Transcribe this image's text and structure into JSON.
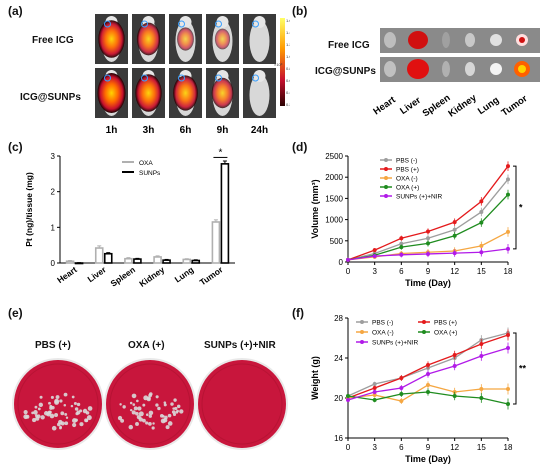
{
  "panel_labels": [
    "(a)",
    "(b)",
    "(c)",
    "(d)",
    "(e)",
    "(f)"
  ],
  "panel_a": {
    "row_labels": [
      "Free ICG",
      "ICG@SUNPs"
    ],
    "time_labels": [
      "1h",
      "3h",
      "6h",
      "9h",
      "24h"
    ],
    "colorbar_ticks": [
      "1.6",
      "1.4",
      "1.2",
      "1.0",
      "0.8",
      "0.6",
      "0.4",
      "0.2"
    ],
    "colorbar_exponent": "×10⁹",
    "colors": {
      "dark": "#1a0000",
      "mid": "#c8102e",
      "hot": "#ffd400"
    }
  },
  "panel_b": {
    "row_labels": [
      "Free ICG",
      "ICG@SUNPs"
    ],
    "organ_labels": [
      "Heart",
      "Liver",
      "Spleen",
      "Kidney",
      "Lung",
      "Tumor"
    ]
  },
  "panel_e": {
    "dish_labels": [
      "PBS (+)",
      "OXA (+)",
      "SUNPs (+)+NIR"
    ],
    "colors": {
      "agar": "#c8163c",
      "colony": "#d9d9d9"
    }
  },
  "chart_data": [
    {
      "id": "c",
      "type": "bar",
      "ylabel": "Pt (ng)/tissue (mg)",
      "ylim": [
        0,
        3
      ],
      "yticks": [
        "0",
        "1",
        "2",
        "3"
      ],
      "categories": [
        "Heart",
        "Liver",
        "Spleen",
        "Kidney",
        "Lung",
        "Tumor"
      ],
      "series": [
        {
          "name": "OXA",
          "color": "#b0b0b0",
          "values": [
            0.05,
            0.42,
            0.12,
            0.17,
            0.1,
            1.15
          ],
          "err": [
            0.02,
            0.06,
            0.03,
            0.03,
            0.02,
            0.06
          ]
        },
        {
          "name": "SUNPs",
          "color": "#000000",
          "values": [
            0.0,
            0.26,
            0.11,
            0.08,
            0.07,
            2.78
          ],
          "err": [
            0.01,
            0.03,
            0.02,
            0.02,
            0.02,
            0.08
          ]
        }
      ],
      "annotation": "*",
      "legend_position": "top-left"
    },
    {
      "id": "d",
      "type": "line",
      "xlabel": "Time (Day)",
      "ylabel": "Volume (mm³)",
      "xlim": [
        0,
        18
      ],
      "ylim": [
        0,
        2500
      ],
      "x": [
        0,
        3,
        6,
        9,
        12,
        15,
        18
      ],
      "xticks": [
        "0",
        "3",
        "6",
        "9",
        "12",
        "15",
        "18"
      ],
      "yticks": [
        "0",
        "500",
        "1000",
        "1500",
        "2000",
        "2500"
      ],
      "series": [
        {
          "name": "PBS (-)",
          "color": "#9e9e9e",
          "values": [
            50,
            200,
            430,
            560,
            760,
            1180,
            1950
          ]
        },
        {
          "name": "PBS (+)",
          "color": "#e41a1c",
          "values": [
            50,
            280,
            560,
            720,
            940,
            1430,
            2260
          ]
        },
        {
          "name": "OXA (-)",
          "color": "#f5a742",
          "values": [
            50,
            120,
            200,
            230,
            260,
            380,
            710
          ]
        },
        {
          "name": "OXA (+)",
          "color": "#1f8c1f",
          "values": [
            50,
            160,
            350,
            440,
            620,
            930,
            1590
          ]
        },
        {
          "name": "SUNPs (+)+NIR",
          "color": "#b11ae8",
          "values": [
            50,
            140,
            170,
            190,
            210,
            230,
            310
          ]
        }
      ],
      "annotation": "*",
      "legend_position": "top-left"
    },
    {
      "id": "f",
      "type": "line",
      "xlabel": "Time (Day)",
      "ylabel": "Weight (g)",
      "xlim": [
        0,
        18
      ],
      "ylim": [
        16,
        28
      ],
      "x": [
        0,
        3,
        6,
        9,
        12,
        15,
        18
      ],
      "xticks": [
        "0",
        "3",
        "6",
        "9",
        "12",
        "15",
        "18"
      ],
      "yticks": [
        "16",
        "20",
        "24",
        "28"
      ],
      "series": [
        {
          "name": "PBS (-)",
          "color": "#9e9e9e",
          "values": [
            20.2,
            21.4,
            22.0,
            23.0,
            24.0,
            25.8,
            26.5
          ]
        },
        {
          "name": "PBS (+)",
          "color": "#e41a1c",
          "values": [
            20.0,
            21.0,
            22.0,
            23.3,
            24.3,
            25.4,
            26.3
          ]
        },
        {
          "name": "OXA (-)",
          "color": "#f5a742",
          "values": [
            20.0,
            20.3,
            19.7,
            21.3,
            20.6,
            20.9,
            20.9
          ]
        },
        {
          "name": "OXA (+)",
          "color": "#1f8c1f",
          "values": [
            20.2,
            19.8,
            20.4,
            20.6,
            20.2,
            20.0,
            19.4
          ]
        },
        {
          "name": "SUNPs (+)+NIR",
          "color": "#b11ae8",
          "values": [
            19.8,
            20.6,
            21.0,
            22.4,
            23.2,
            24.2,
            25.0
          ]
        }
      ],
      "annotation": "**",
      "legend_position": "top-left"
    }
  ]
}
